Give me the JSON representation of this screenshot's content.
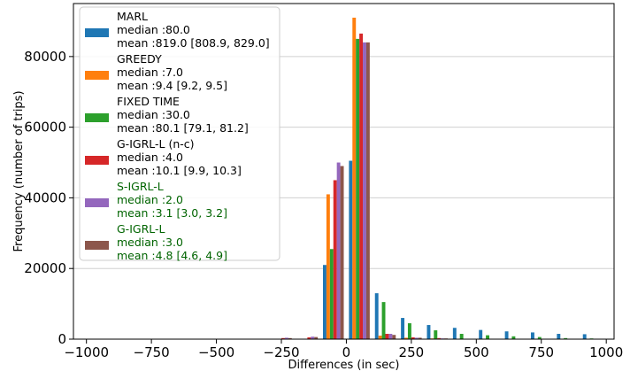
{
  "chart_data": {
    "type": "bar",
    "xlabel": "Differences (in sec)",
    "ylabel": "Frequency (number of trips)",
    "xlim": [
      -1050,
      1030
    ],
    "ylim": [
      0,
      95000
    ],
    "xticks": [
      -1000,
      -750,
      -500,
      -250,
      0,
      250,
      500,
      750,
      1000
    ],
    "yticks": [
      0,
      20000,
      40000,
      60000,
      80000
    ],
    "xtick_labels": [
      "−1000",
      "−750",
      "−500",
      "−250",
      "0",
      "250",
      "500",
      "750",
      "1000"
    ],
    "ytick_labels": [
      "0",
      "20000",
      "40000",
      "60000",
      "80000"
    ],
    "grid": "horizontal",
    "legend_position": "upper-left",
    "bin_centers": [
      -250,
      -150,
      -50,
      50,
      150,
      250,
      350,
      450,
      550,
      650,
      750,
      850,
      950
    ],
    "series": [
      {
        "name": "MARL",
        "median_label": "median :80.0",
        "mean_label": "mean :819.0 [808.9, 829.0]",
        "color": "#1f77b4",
        "label_color": "#000000",
        "values": [
          0,
          0,
          21000,
          50500,
          13000,
          6000,
          4000,
          3200,
          2600,
          2200,
          1900,
          1500,
          1400
        ]
      },
      {
        "name": "GREEDY",
        "median_label": "median :7.0",
        "mean_label": "mean :9.4 [9.2, 9.5]",
        "color": "#ff7f0e",
        "label_color": "#000000",
        "values": [
          0,
          0,
          41000,
          91000,
          1000,
          400,
          200,
          100,
          50,
          0,
          0,
          0,
          0
        ]
      },
      {
        "name": "FIXED TIME",
        "median_label": "median :30.0",
        "mean_label": "mean :80.1 [79.1, 81.2]",
        "color": "#2ca02c",
        "label_color": "#000000",
        "values": [
          0,
          0,
          25500,
          85000,
          10500,
          4500,
          2500,
          1500,
          1100,
          800,
          600,
          300,
          200
        ]
      },
      {
        "name": "G-IGRL-L (n-c)",
        "median_label": "median :4.0",
        "mean_label": "mean :10.1 [9.9, 10.3]",
        "color": "#d62728",
        "label_color": "#000000",
        "values": [
          300,
          500,
          45000,
          86500,
          1500,
          500,
          300,
          100,
          50,
          0,
          0,
          0,
          0
        ]
      },
      {
        "name": "S-IGRL-L",
        "median_label": "median :2.0",
        "mean_label": "mean :3.1 [3.0, 3.2]",
        "color": "#9467bd",
        "label_color": "#006400",
        "values": [
          400,
          700,
          50000,
          84000,
          1500,
          400,
          200,
          100,
          0,
          0,
          0,
          0,
          0
        ]
      },
      {
        "name": "G-IGRL-L",
        "median_label": "median :3.0",
        "mean_label": "mean :4.8 [4.6, 4.9]",
        "color": "#8c564b",
        "label_color": "#006400",
        "values": [
          300,
          600,
          49000,
          84000,
          1200,
          400,
          200,
          100,
          0,
          0,
          0,
          0,
          0
        ]
      }
    ]
  }
}
